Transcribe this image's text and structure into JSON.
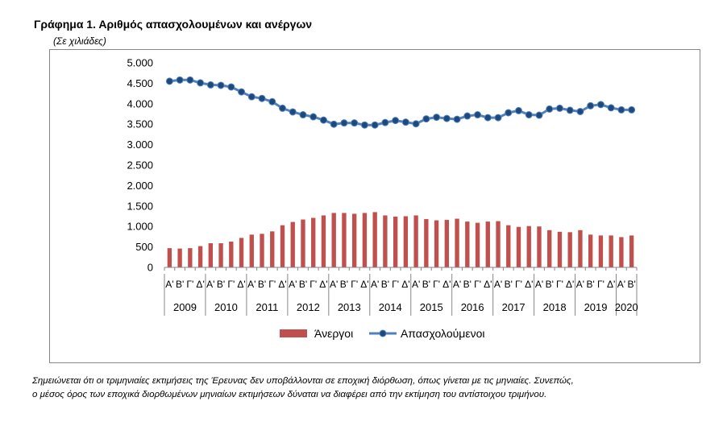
{
  "header": {
    "title": "Γράφημα 1. Αριθμός απασχολουμένων και ανέργων",
    "subtitle": "(Σε χιλιάδες)"
  },
  "note": {
    "line1": "Σημειώνεται ότι οι τριμηνιαίες εκτιμήσεις της Έρευνας δεν υποβάλλονται σε εποχική διόρθωση, όπως γίνεται με τις μηνιαίες. Συνεπώς,",
    "line2": "ο μέσος όρος των εποχικά διορθωμένων μηνιαίων εκτιμήσεων δύναται να διαφέρει από την εκτίμηση του αντίστοιχου τριμήνου."
  },
  "chart_data": {
    "type": "bar+line",
    "ylim": [
      0,
      5000
    ],
    "yticks": [
      0,
      500,
      1000,
      1500,
      2000,
      2500,
      3000,
      3500,
      4000,
      4500,
      5000
    ],
    "ytick_labels": [
      "0",
      "500",
      "1.000",
      "1.500",
      "2.000",
      "2.500",
      "3.000",
      "3.500",
      "4.000",
      "4.500",
      "5.000"
    ],
    "quarters": [
      "Α'",
      "Β'",
      "Γ'",
      "Δ'",
      "Α'",
      "Β'",
      "Γ'",
      "Δ'",
      "Α'",
      "Β'",
      "Γ'",
      "Δ'",
      "Α'",
      "Β'",
      "Γ'",
      "Δ'",
      "Α'",
      "Β'",
      "Γ'",
      "Δ'",
      "Α'",
      "Β'",
      "Γ'",
      "Δ'",
      "Α'",
      "Β'",
      "Γ'",
      "Δ'",
      "Α'",
      "Β'",
      "Γ'",
      "Δ'",
      "Α'",
      "Β'",
      "Γ'",
      "Δ'",
      "Α'",
      "Β'",
      "Γ'",
      "Δ'",
      "Α'",
      "Β'",
      "Γ'",
      "Δ'",
      "Α'",
      "Β'"
    ],
    "years": [
      {
        "label": "2009",
        "quarters": 4
      },
      {
        "label": "2010",
        "quarters": 4
      },
      {
        "label": "2011",
        "quarters": 4
      },
      {
        "label": "2012",
        "quarters": 4
      },
      {
        "label": "2013",
        "quarters": 4
      },
      {
        "label": "2014",
        "quarters": 4
      },
      {
        "label": "2015",
        "quarters": 4
      },
      {
        "label": "2016",
        "quarters": 4
      },
      {
        "label": "2017",
        "quarters": 4
      },
      {
        "label": "2018",
        "quarters": 4
      },
      {
        "label": "2019",
        "quarters": 4
      },
      {
        "label": "2020",
        "quarters": 2
      }
    ],
    "series": [
      {
        "name": "Άνεργοι",
        "kind": "bar",
        "color": "#C0504D",
        "values": [
          470,
          460,
          470,
          520,
          590,
          590,
          630,
          720,
          800,
          820,
          880,
          1030,
          1110,
          1170,
          1210,
          1270,
          1330,
          1330,
          1310,
          1330,
          1350,
          1270,
          1240,
          1250,
          1270,
          1180,
          1150,
          1160,
          1190,
          1120,
          1090,
          1120,
          1130,
          1030,
          990,
          1010,
          1000,
          910,
          870,
          860,
          910,
          800,
          780,
          780,
          740,
          780
        ]
      },
      {
        "name": "Απασχολούμενοι",
        "kind": "line",
        "color": "#254E79",
        "marker_color": "#1F497D",
        "line_color": "#4F81BD",
        "values": [
          4550,
          4580,
          4580,
          4510,
          4460,
          4450,
          4410,
          4290,
          4170,
          4130,
          4050,
          3890,
          3800,
          3730,
          3680,
          3600,
          3500,
          3530,
          3530,
          3480,
          3480,
          3540,
          3590,
          3550,
          3510,
          3630,
          3670,
          3640,
          3620,
          3700,
          3730,
          3660,
          3660,
          3780,
          3830,
          3730,
          3720,
          3870,
          3890,
          3840,
          3810,
          3950,
          3980,
          3900,
          3850,
          3850
        ]
      }
    ],
    "legend_position": "bottom-center",
    "grid": false
  }
}
